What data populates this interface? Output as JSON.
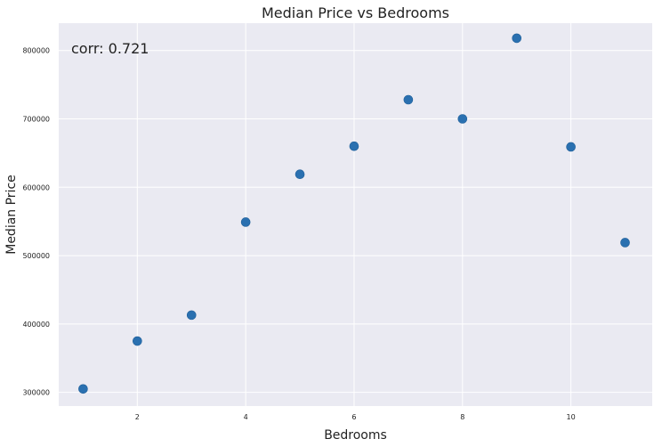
{
  "chart_data": {
    "type": "scatter",
    "title": "Median Price vs Bedrooms",
    "xlabel": "Bedrooms",
    "ylabel": "Median Price",
    "annotation": "corr: 0.721",
    "xlim": [
      0.55,
      11.5
    ],
    "ylim": [
      280000,
      840000
    ],
    "xticks": [
      2,
      4,
      6,
      8,
      10
    ],
    "yticks": [
      300000,
      400000,
      500000,
      600000,
      700000,
      800000
    ],
    "grid": true,
    "marker_color": "#2a70b0",
    "background_color": "#eaeaf2",
    "grid_color": "#ffffff",
    "points": [
      {
        "x": 1,
        "y": 305000
      },
      {
        "x": 2,
        "y": 375000
      },
      {
        "x": 3,
        "y": 413000
      },
      {
        "x": 4,
        "y": 549000
      },
      {
        "x": 5,
        "y": 619000
      },
      {
        "x": 6,
        "y": 660000
      },
      {
        "x": 7,
        "y": 728000
      },
      {
        "x": 8,
        "y": 700000
      },
      {
        "x": 9,
        "y": 818000
      },
      {
        "x": 10,
        "y": 659000
      },
      {
        "x": 11,
        "y": 519000
      }
    ]
  }
}
